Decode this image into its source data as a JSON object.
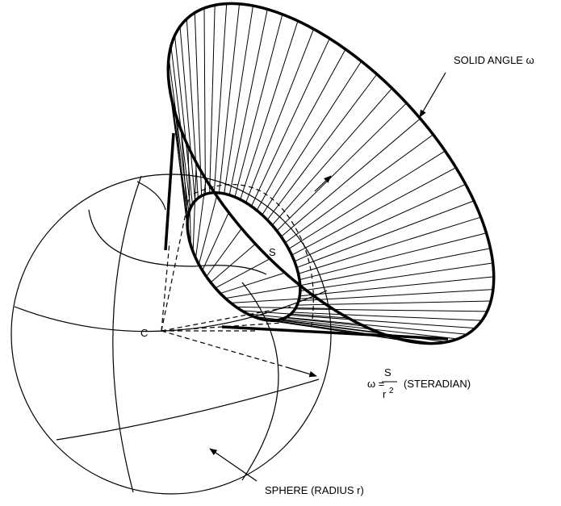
{
  "labels": {
    "solid_angle": "SOLID ANGLE ω",
    "s": "S",
    "c": "C",
    "sphere": "SPHERE (RADIUS r)"
  },
  "formula": {
    "lhs": "ω =",
    "numerator": "S",
    "denominator": "r",
    "exponent": "2",
    "unit": "(STERADIAN)"
  }
}
